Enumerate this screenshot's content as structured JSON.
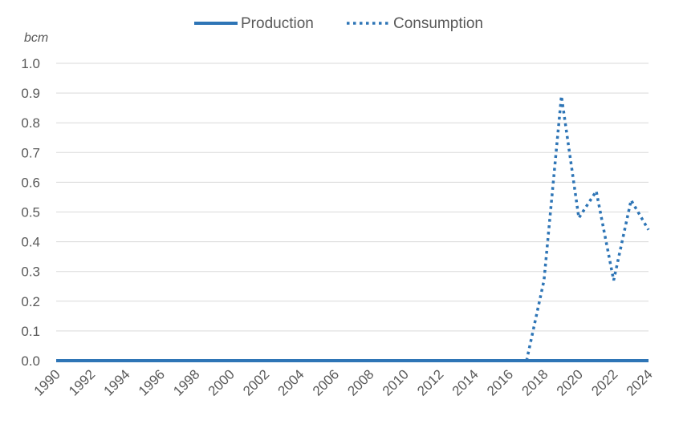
{
  "chart_data": {
    "type": "line",
    "title": "",
    "xlabel": "",
    "ylabel": "bcm",
    "ylim": [
      0,
      1.0
    ],
    "yticks": [
      "0.0",
      "0.1",
      "0.2",
      "0.3",
      "0.4",
      "0.5",
      "0.6",
      "0.7",
      "0.8",
      "0.9",
      "1.0"
    ],
    "xticks": [
      "1990",
      "1992",
      "1994",
      "1996",
      "1998",
      "2000",
      "2002",
      "2004",
      "2006",
      "2008",
      "2010",
      "2012",
      "2014",
      "2016",
      "2018",
      "2020",
      "2022",
      "2024"
    ],
    "x": [
      1990,
      1991,
      1992,
      1993,
      1994,
      1995,
      1996,
      1997,
      1998,
      1999,
      2000,
      2001,
      2002,
      2003,
      2004,
      2005,
      2006,
      2007,
      2008,
      2009,
      2010,
      2011,
      2012,
      2013,
      2014,
      2015,
      2016,
      2017,
      2018,
      2019,
      2020,
      2021,
      2022,
      2023,
      2024
    ],
    "grid": true,
    "legend_position": "top",
    "series": [
      {
        "name": "Production",
        "style": "solid",
        "color": "#2e75b6",
        "values": [
          0,
          0,
          0,
          0,
          0,
          0,
          0,
          0,
          0,
          0,
          0,
          0,
          0,
          0,
          0,
          0,
          0,
          0,
          0,
          0,
          0,
          0,
          0,
          0,
          0,
          0,
          0,
          0,
          0,
          0,
          0,
          0,
          0,
          0,
          0
        ]
      },
      {
        "name": "Consumption",
        "style": "dotted",
        "color": "#2e75b6",
        "values": [
          null,
          null,
          null,
          null,
          null,
          null,
          null,
          null,
          null,
          null,
          null,
          null,
          null,
          null,
          null,
          null,
          null,
          null,
          null,
          null,
          null,
          null,
          null,
          null,
          null,
          null,
          null,
          0,
          0.27,
          0.89,
          0.48,
          0.57,
          0.27,
          0.54,
          0.44
        ]
      }
    ]
  }
}
